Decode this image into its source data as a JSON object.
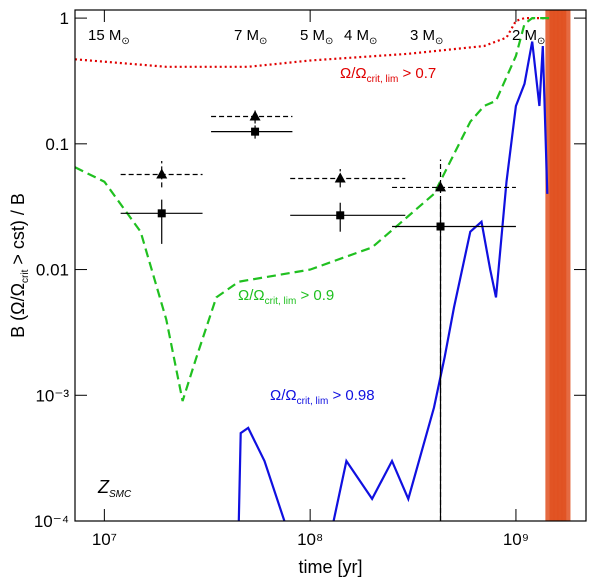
{
  "chart_data": {
    "type": "line",
    "xlabel": "time [yr]",
    "ylabel": {
      "parts": [
        "B (Ω/Ω",
        "crit",
        " > cst) / B"
      ]
    },
    "log_x": true,
    "log_y": true,
    "xlim": [
      7200000,
      2190000000
    ],
    "ylim": [
      0.0001,
      1.16
    ],
    "xticks": [
      {
        "value": 10000000,
        "label": "10⁷"
      },
      {
        "value": 100000000,
        "label": "10⁸"
      },
      {
        "value": 1000000000,
        "label": "10⁹"
      }
    ],
    "yticks": [
      {
        "value": 0.0001,
        "label": "10⁻⁴"
      },
      {
        "value": 0.001,
        "label": "10⁻³"
      },
      0.01,
      0.1,
      1
    ],
    "series": [
      {
        "name": {
          "parts": [
            "Ω/Ω",
            "crit, lim",
            " > 0.7"
          ]
        },
        "color": "#e00000",
        "dash": "2,3",
        "x": [
          7200000,
          10000000,
          20000000,
          50000000,
          100000000,
          300000000,
          700000000,
          900000000,
          1000000000,
          1100000000,
          1450000000
        ],
        "values": [
          0.47,
          0.45,
          0.41,
          0.41,
          0.46,
          0.52,
          0.6,
          0.7,
          0.95,
          1.0,
          1.0
        ]
      },
      {
        "name": {
          "parts": [
            "Ω/Ω",
            "crit, lim",
            " > 0.9"
          ]
        },
        "color": "#20c020",
        "dash": "9,5",
        "x": [
          7200000,
          10000000,
          15000000,
          20000000,
          24000000,
          28000000,
          35000000,
          45000000,
          100000000,
          200000000,
          400000000,
          600000000,
          700000000,
          800000000,
          1000000000,
          1100000000,
          1200000000,
          1450000000
        ],
        "values": [
          0.065,
          0.05,
          0.02,
          0.004,
          0.0009,
          0.002,
          0.006,
          0.008,
          0.01,
          0.015,
          0.04,
          0.15,
          0.2,
          0.22,
          0.5,
          0.9,
          1.0,
          1.0
        ]
      },
      {
        "name": {
          "parts": [
            "Ω/Ω",
            "crit, lim",
            " > 0.98"
          ]
        },
        "color": "#1010e0",
        "dash": "",
        "x": [
          45000000,
          46000000,
          50000000,
          60000000,
          75000000,
          null,
          130000000,
          150000000,
          200000000,
          250000000,
          300000000,
          400000000,
          450000000,
          500000000,
          600000000,
          680000000,
          750000000,
          800000000,
          900000000,
          1000000000,
          1100000000,
          1200000000,
          1300000000,
          1350000000,
          1420000000
        ],
        "values": [
          0.0001,
          0.0005,
          0.00055,
          0.0003,
          0.0001,
          null,
          0.0001,
          0.0003,
          0.00015,
          0.0003,
          0.00015,
          0.0008,
          0.002,
          0.005,
          0.02,
          0.024,
          0.01,
          0.006,
          0.05,
          0.2,
          0.3,
          0.65,
          0.2,
          0.6,
          0.04
        ]
      }
    ],
    "stripes": {
      "x": [
        1470000000,
        1540000000,
        1610000000,
        1680000000,
        1760000000
      ],
      "color": "#e05020"
    },
    "points": [
      {
        "x": 19000000,
        "xlo": 12000000,
        "xhi": 30000000,
        "tri": 0.057,
        "tri_lo": 0.045,
        "tri_hi": 0.073,
        "sq": 0.028,
        "sq_lo": 0.016,
        "sq_hi": 0.036
      },
      {
        "x": 54000000,
        "xlo": 33000000,
        "xhi": 82000000,
        "tri": 0.165,
        "tri_lo": 0.145,
        "tri_hi": 0.19,
        "sq": 0.125,
        "sq_lo": 0.11,
        "sq_hi": 0.14
      },
      {
        "x": 140000000,
        "xlo": 80000000,
        "xhi": 290000000,
        "tri": 0.053,
        "tri_lo": 0.045,
        "tri_hi": 0.063,
        "sq": 0.027,
        "sq_lo": 0.02,
        "sq_hi": 0.034
      },
      {
        "x": 430000000,
        "xlo": 250000000,
        "xhi": 1000000000,
        "tri": 0.045,
        "tri_lo": 0.0001,
        "tri_hi": 0.075,
        "sq": 0.022,
        "sq_lo": 0.0001,
        "sq_hi": 0.035
      }
    ],
    "masses": [
      {
        "parts": [
          "15 M",
          "⊙"
        ]
      },
      {
        "parts": [
          "7 M",
          "⊙"
        ]
      },
      {
        "parts": [
          "5 M",
          "⊙"
        ]
      },
      {
        "parts": [
          "4 M",
          "⊙"
        ]
      },
      {
        "parts": [
          "3 M",
          "⊙"
        ]
      },
      {
        "parts": [
          "2 M",
          "⊙"
        ]
      }
    ],
    "metallicity": {
      "parts": [
        "Z",
        "SMC"
      ]
    }
  }
}
